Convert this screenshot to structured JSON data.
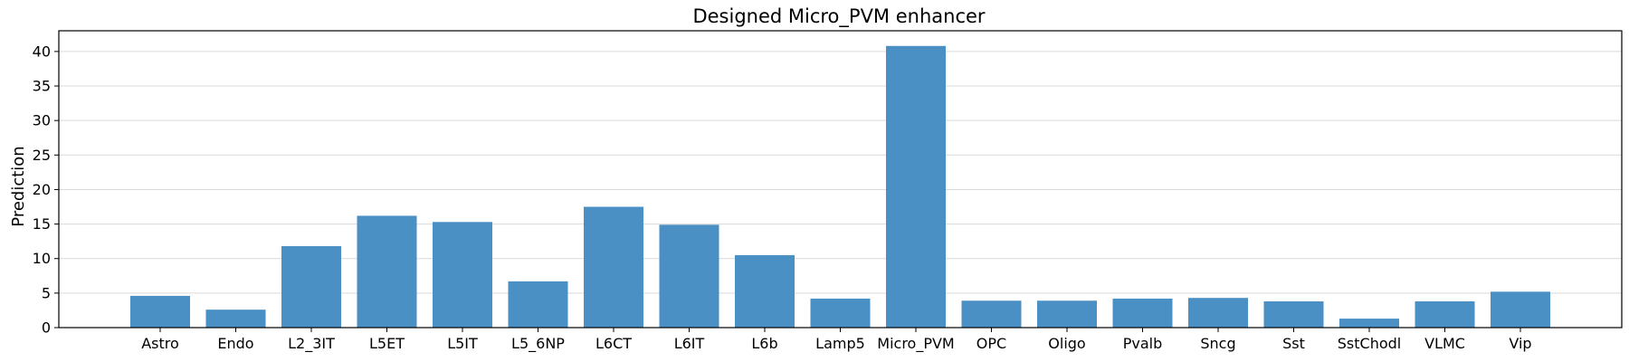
{
  "chart_data": {
    "type": "bar",
    "title": "Designed Micro_PVM enhancer",
    "xlabel": "",
    "ylabel": "Prediction",
    "ylim": [
      0,
      43
    ],
    "yticks": [
      0,
      5,
      10,
      15,
      20,
      25,
      30,
      35,
      40
    ],
    "grid": "y",
    "bar_color": "#4a90c4",
    "categories": [
      "Astro",
      "Endo",
      "L2_3IT",
      "L5ET",
      "L5IT",
      "L5_6NP",
      "L6CT",
      "L6IT",
      "L6b",
      "Lamp5",
      "Micro_PVM",
      "OPC",
      "Oligo",
      "Pvalb",
      "Sncg",
      "Sst",
      "SstChodl",
      "VLMC",
      "Vip"
    ],
    "values": [
      4.6,
      2.6,
      11.8,
      16.2,
      15.3,
      6.7,
      17.5,
      14.9,
      10.5,
      4.2,
      40.8,
      3.9,
      3.9,
      4.2,
      4.3,
      3.8,
      1.3,
      3.8,
      5.2
    ]
  }
}
